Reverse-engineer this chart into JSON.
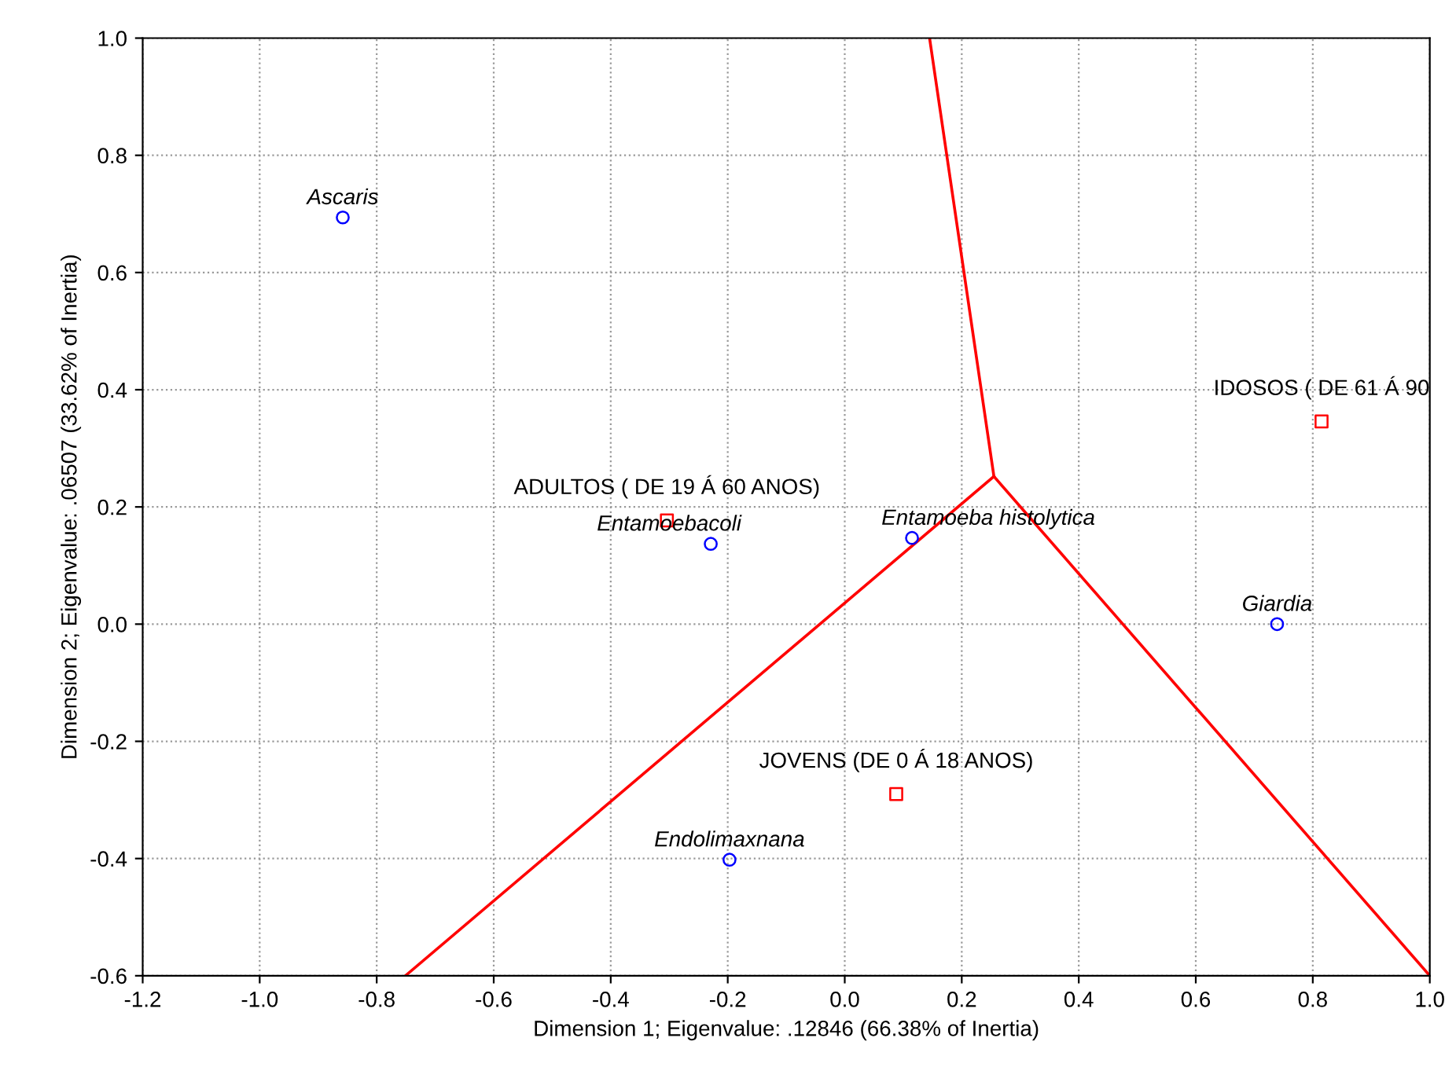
{
  "chart_data": {
    "type": "scatter",
    "xlabel": "Dimension 1; Eigenvalue: .12846 (66.38% of Inertia)",
    "ylabel": "Dimension 2; Eigenvalue: .06507 (33.62% of Inertia)",
    "xlim": [
      -1.2,
      1.0
    ],
    "ylim": [
      -0.6,
      1.0
    ],
    "xticks": [
      -1.2,
      {
        "value": -1,
        "label": "-1.0"
      },
      -0.8,
      -0.6,
      -0.4,
      -0.2,
      {
        "value": 0,
        "label": "0.0"
      },
      0.2,
      0.4,
      0.6,
      0.8,
      {
        "value": 1,
        "label": "1.0"
      }
    ],
    "yticks": [
      -0.6,
      -0.4,
      -0.2,
      {
        "value": 0,
        "label": "0.0"
      },
      0.2,
      0.4,
      0.6,
      0.8,
      {
        "value": 1,
        "label": "1.0"
      }
    ],
    "grid": true,
    "legend": false,
    "series": [
      {
        "type": "line",
        "color": "#ff0000",
        "marker": "none",
        "x": [
          0.255,
          0.145
        ],
        "values": [
          0.252,
          1.0
        ]
      },
      {
        "type": "line",
        "color": "#ff0000",
        "marker": "none",
        "x": [
          0.255,
          -0.751
        ],
        "values": [
          0.252,
          -0.6
        ]
      },
      {
        "type": "line",
        "color": "#ff0000",
        "marker": "none",
        "x": [
          0.255,
          1.0
        ],
        "values": [
          0.252,
          -0.6
        ]
      },
      {
        "color": "#0000ff",
        "marker": "circle",
        "x": [
          -0.858,
          -0.229,
          0.115,
          0.739,
          -0.197
        ],
        "values": [
          0.694,
          0.137,
          0.147,
          0.0,
          -0.402
        ],
        "value_labels": [
          "Ascaris",
          "Entamoebacoli",
          "Entamoeba histolytica",
          "Giardia",
          "Endolimaxnana"
        ]
      },
      {
        "color": "#ff0000",
        "marker": "square",
        "x": [
          0.815,
          -0.304,
          0.088
        ],
        "values": [
          0.346,
          0.177,
          -0.29
        ],
        "value_labels": [
          "IDOSOS ( DE 61 Á 90",
          "ADULTOS ( DE 19 Á 60 ANOS)",
          "JOVENS (DE 0 Á 18 ANOS)"
        ]
      }
    ]
  }
}
